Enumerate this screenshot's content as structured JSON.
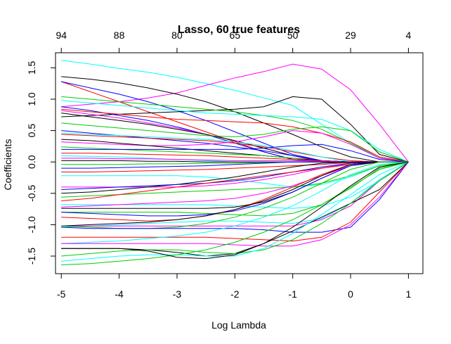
{
  "chart_data": {
    "type": "line",
    "title": "Lasso, 60 true features",
    "xlabel": "Log Lambda",
    "ylabel": "Coefficients",
    "xlim": [
      -5.1,
      1.25
    ],
    "ylim": [
      -1.78,
      1.74
    ],
    "x_ticks": [
      -5,
      -4,
      -3,
      -2,
      -1,
      0,
      1
    ],
    "y_ticks": [
      -1.5,
      -1.0,
      -0.5,
      0.0,
      0.5,
      1.0,
      1.5
    ],
    "y_tick_labels": [
      "-1.5",
      "-1.0",
      "-0.5",
      "0.0",
      "0.5",
      "1.0",
      "1.5"
    ],
    "top_axis": {
      "x": [
        -5,
        -4,
        -3,
        -2,
        -1,
        0,
        1
      ],
      "labels": [
        "94",
        "88",
        "80",
        "65",
        "50",
        "29",
        "4"
      ]
    },
    "grid": false,
    "legend": "none",
    "colors": [
      "#000000",
      "#ff0000",
      "#00cd00",
      "#0000ff",
      "#00ffff",
      "#ff00ff"
    ],
    "x": [
      -5,
      -4.5,
      -4,
      -3.5,
      -3,
      -2.5,
      -2,
      -1.5,
      -1,
      -0.5,
      0,
      0.5,
      1
    ],
    "series": [
      {
        "color": "#00ffff",
        "values": [
          1.62,
          1.56,
          1.49,
          1.43,
          1.35,
          1.25,
          1.14,
          1.02,
          0.9,
          0.6,
          0.3,
          0.08,
          0.0
        ]
      },
      {
        "color": "#ff00ff",
        "values": [
          0.88,
          0.92,
          0.96,
          1.02,
          1.1,
          1.22,
          1.34,
          1.44,
          1.56,
          1.48,
          1.15,
          0.6,
          0.0
        ]
      },
      {
        "color": "#000000",
        "values": [
          1.36,
          1.32,
          1.26,
          1.18,
          1.08,
          0.96,
          0.8,
          0.62,
          0.44,
          0.24,
          0.08,
          0.0,
          0.0
        ]
      },
      {
        "color": "#ff0000",
        "values": [
          1.28,
          1.12,
          0.96,
          0.8,
          0.64,
          0.48,
          0.32,
          0.16,
          0.04,
          0.0,
          0.0,
          0.0,
          0.0
        ]
      },
      {
        "color": "#0000ff",
        "values": [
          1.28,
          1.18,
          1.08,
          0.96,
          0.82,
          0.66,
          0.48,
          0.3,
          0.12,
          0.02,
          0.0,
          0.0,
          0.0
        ]
      },
      {
        "color": "#000000",
        "values": [
          0.72,
          0.74,
          0.76,
          0.78,
          0.8,
          0.82,
          0.84,
          0.88,
          1.04,
          1.0,
          0.6,
          0.12,
          0.0
        ]
      },
      {
        "color": "#00cd00",
        "values": [
          1.04,
          1.0,
          0.96,
          0.92,
          0.88,
          0.84,
          0.8,
          0.74,
          0.66,
          0.52,
          0.3,
          0.06,
          0.0
        ]
      },
      {
        "color": "#0000ff",
        "values": [
          0.88,
          0.82,
          0.74,
          0.66,
          0.56,
          0.44,
          0.3,
          0.16,
          0.04,
          0.0,
          0.0,
          0.0,
          0.0
        ]
      },
      {
        "color": "#00ffff",
        "values": [
          0.98,
          0.94,
          0.9,
          0.86,
          0.82,
          0.78,
          0.76,
          0.74,
          0.72,
          0.68,
          0.5,
          0.2,
          0.0
        ]
      },
      {
        "color": "#ff0000",
        "values": [
          0.84,
          0.8,
          0.76,
          0.72,
          0.68,
          0.66,
          0.64,
          0.62,
          0.56,
          0.46,
          0.32,
          0.08,
          0.0
        ]
      },
      {
        "color": "#ff00ff",
        "values": [
          0.82,
          0.76,
          0.7,
          0.62,
          0.54,
          0.44,
          0.34,
          0.22,
          0.1,
          0.0,
          0.0,
          0.0,
          0.0
        ]
      },
      {
        "color": "#000000",
        "values": [
          0.78,
          0.72,
          0.66,
          0.6,
          0.52,
          0.44,
          0.34,
          0.22,
          0.1,
          0.02,
          0.0,
          0.0,
          0.0
        ]
      },
      {
        "color": "#00cd00",
        "values": [
          0.62,
          0.58,
          0.54,
          0.5,
          0.46,
          0.42,
          0.4,
          0.44,
          0.52,
          0.56,
          0.5,
          0.16,
          0.0
        ]
      },
      {
        "color": "#0000ff",
        "values": [
          0.5,
          0.46,
          0.42,
          0.38,
          0.34,
          0.3,
          0.24,
          0.18,
          0.1,
          0.02,
          0.0,
          0.0,
          0.0
        ]
      },
      {
        "color": "#ff0000",
        "values": [
          0.44,
          0.42,
          0.4,
          0.38,
          0.36,
          0.34,
          0.3,
          0.24,
          0.16,
          0.08,
          0.02,
          0.0,
          0.0
        ]
      },
      {
        "color": "#00ffff",
        "values": [
          0.46,
          0.44,
          0.42,
          0.4,
          0.38,
          0.36,
          0.32,
          0.26,
          0.18,
          0.08,
          0.0,
          0.0,
          0.0
        ]
      },
      {
        "color": "#ff00ff",
        "values": [
          0.32,
          0.3,
          0.28,
          0.26,
          0.26,
          0.28,
          0.32,
          0.4,
          0.5,
          0.46,
          0.28,
          0.06,
          0.0
        ]
      },
      {
        "color": "#000000",
        "values": [
          0.36,
          0.34,
          0.3,
          0.26,
          0.22,
          0.18,
          0.14,
          0.1,
          0.06,
          0.02,
          0.0,
          0.0,
          0.0
        ]
      },
      {
        "color": "#00cd00",
        "values": [
          0.24,
          0.22,
          0.2,
          0.18,
          0.16,
          0.14,
          0.12,
          0.1,
          0.06,
          0.0,
          0.0,
          0.0,
          0.0
        ]
      },
      {
        "color": "#0000ff",
        "values": [
          0.2,
          0.2,
          0.2,
          0.2,
          0.2,
          0.2,
          0.2,
          0.22,
          0.26,
          0.28,
          0.18,
          0.04,
          0.0
        ]
      },
      {
        "color": "#ff0000",
        "values": [
          0.14,
          0.14,
          0.13,
          0.12,
          0.11,
          0.1,
          0.08,
          0.06,
          0.04,
          0.02,
          0.0,
          0.0,
          0.0
        ]
      },
      {
        "color": "#00ffff",
        "values": [
          0.1,
          0.09,
          0.08,
          0.06,
          0.04,
          0.02,
          0.0,
          0.0,
          0.0,
          0.0,
          0.0,
          0.0,
          0.0
        ]
      },
      {
        "color": "#ff00ff",
        "values": [
          0.06,
          0.06,
          0.05,
          0.05,
          0.04,
          0.03,
          0.02,
          0.02,
          0.02,
          0.01,
          0.0,
          0.0,
          0.0
        ]
      },
      {
        "color": "#000000",
        "values": [
          0.02,
          0.02,
          0.02,
          0.01,
          0.01,
          0.0,
          0.0,
          0.0,
          0.0,
          0.0,
          0.0,
          0.0,
          0.0
        ]
      },
      {
        "color": "#00cd00",
        "values": [
          -0.04,
          -0.04,
          -0.04,
          -0.03,
          -0.03,
          -0.02,
          -0.02,
          -0.01,
          0.0,
          0.0,
          0.0,
          0.0,
          0.0
        ]
      },
      {
        "color": "#0000ff",
        "values": [
          -0.1,
          -0.1,
          -0.09,
          -0.08,
          -0.07,
          -0.06,
          -0.04,
          -0.02,
          0.0,
          0.0,
          0.0,
          0.0,
          0.0
        ]
      },
      {
        "color": "#ff0000",
        "values": [
          -0.16,
          -0.16,
          -0.15,
          -0.14,
          -0.13,
          -0.12,
          -0.1,
          -0.08,
          -0.06,
          -0.04,
          -0.01,
          0.0,
          0.0
        ]
      },
      {
        "color": "#00ffff",
        "values": [
          -0.22,
          -0.22,
          -0.22,
          -0.22,
          -0.22,
          -0.24,
          -0.28,
          -0.34,
          -0.4,
          -0.36,
          -0.24,
          -0.06,
          0.0
        ]
      },
      {
        "color": "#ff00ff",
        "values": [
          -0.4,
          -0.4,
          -0.4,
          -0.4,
          -0.4,
          -0.38,
          -0.34,
          -0.28,
          -0.2,
          -0.1,
          -0.02,
          0.0,
          0.0
        ]
      },
      {
        "color": "#000000",
        "values": [
          -0.5,
          -0.48,
          -0.44,
          -0.4,
          -0.36,
          -0.3,
          -0.24,
          -0.16,
          -0.08,
          -0.02,
          0.0,
          0.0,
          0.0
        ]
      },
      {
        "color": "#00cd00",
        "values": [
          -0.56,
          -0.54,
          -0.52,
          -0.5,
          -0.48,
          -0.46,
          -0.44,
          -0.42,
          -0.4,
          -0.34,
          -0.22,
          -0.06,
          0.0
        ]
      },
      {
        "color": "#0000ff",
        "values": [
          -0.44,
          -0.42,
          -0.4,
          -0.38,
          -0.36,
          -0.34,
          -0.3,
          -0.24,
          -0.16,
          -0.08,
          -0.02,
          0.0,
          0.0
        ]
      },
      {
        "color": "#ff0000",
        "values": [
          -0.62,
          -0.58,
          -0.52,
          -0.46,
          -0.4,
          -0.34,
          -0.28,
          -0.22,
          -0.16,
          -0.1,
          -0.04,
          0.0,
          0.0
        ]
      },
      {
        "color": "#00ffff",
        "values": [
          -0.68,
          -0.68,
          -0.68,
          -0.68,
          -0.68,
          -0.68,
          -0.7,
          -0.72,
          -0.74,
          -0.7,
          -0.56,
          -0.3,
          0.0
        ]
      },
      {
        "color": "#ff00ff",
        "values": [
          -0.72,
          -0.7,
          -0.68,
          -0.66,
          -0.64,
          -0.62,
          -0.58,
          -0.5,
          -0.38,
          -0.22,
          -0.06,
          0.0,
          0.0
        ]
      },
      {
        "color": "#000000",
        "values": [
          -0.74,
          -0.74,
          -0.74,
          -0.74,
          -0.74,
          -0.74,
          -0.72,
          -0.64,
          -0.48,
          -0.26,
          -0.06,
          0.0,
          0.0
        ]
      },
      {
        "color": "#00cd00",
        "values": [
          -0.8,
          -0.8,
          -0.8,
          -0.8,
          -0.8,
          -0.82,
          -0.84,
          -0.86,
          -0.82,
          -0.68,
          -0.42,
          -0.1,
          0.0
        ]
      },
      {
        "color": "#0000ff",
        "values": [
          -0.8,
          -0.82,
          -0.84,
          -0.86,
          -0.86,
          -0.84,
          -0.78,
          -0.66,
          -0.48,
          -0.26,
          -0.06,
          0.0,
          0.0
        ]
      },
      {
        "color": "#ff0000",
        "values": [
          -0.88,
          -0.9,
          -0.92,
          -0.94,
          -0.92,
          -0.86,
          -0.76,
          -0.6,
          -0.4,
          -0.2,
          -0.04,
          0.0,
          0.0
        ]
      },
      {
        "color": "#00ffff",
        "values": [
          -1.04,
          -1.02,
          -1.0,
          -0.98,
          -0.96,
          -0.94,
          -0.94,
          -0.96,
          -0.98,
          -0.9,
          -0.66,
          -0.28,
          0.0
        ]
      },
      {
        "color": "#ff00ff",
        "values": [
          -1.02,
          -1.02,
          -1.02,
          -1.02,
          -1.02,
          -1.02,
          -1.02,
          -1.02,
          -1.02,
          -0.92,
          -0.7,
          -0.3,
          0.0
        ]
      },
      {
        "color": "#000000",
        "values": [
          -1.02,
          -1.0,
          -0.98,
          -0.96,
          -0.92,
          -0.86,
          -0.76,
          -0.62,
          -0.44,
          -0.22,
          -0.04,
          0.0,
          0.0
        ]
      },
      {
        "color": "#00cd00",
        "values": [
          -1.02,
          -1.04,
          -1.06,
          -1.06,
          -1.04,
          -0.98,
          -0.88,
          -0.74,
          -0.56,
          -0.34,
          -0.12,
          0.0,
          0.0
        ]
      },
      {
        "color": "#0000ff",
        "values": [
          -1.04,
          -1.06,
          -1.06,
          -1.06,
          -1.06,
          -1.06,
          -1.06,
          -1.08,
          -1.12,
          -1.12,
          -1.04,
          -0.6,
          0.0
        ]
      },
      {
        "color": "#ff0000",
        "values": [
          -1.2,
          -1.2,
          -1.2,
          -1.2,
          -1.2,
          -1.2,
          -1.22,
          -1.24,
          -1.26,
          -1.2,
          -0.96,
          -0.48,
          0.0
        ]
      },
      {
        "color": "#00ffff",
        "values": [
          -1.3,
          -1.28,
          -1.26,
          -1.22,
          -1.18,
          -1.12,
          -1.02,
          -0.88,
          -0.7,
          -0.46,
          -0.2,
          -0.04,
          0.0
        ]
      },
      {
        "color": "#ff00ff",
        "values": [
          -1.3,
          -1.3,
          -1.3,
          -1.3,
          -1.3,
          -1.3,
          -1.32,
          -1.34,
          -1.34,
          -1.24,
          -1.0,
          -0.56,
          0.0
        ]
      },
      {
        "color": "#000000",
        "values": [
          -1.38,
          -1.38,
          -1.38,
          -1.4,
          -1.44,
          -1.5,
          -1.46,
          -1.3,
          -1.1,
          -0.88,
          -0.66,
          -0.44,
          0.0
        ]
      },
      {
        "color": "#00cd00",
        "values": [
          -1.5,
          -1.46,
          -1.42,
          -1.4,
          -1.4,
          -1.44,
          -1.46,
          -1.4,
          -1.24,
          -0.98,
          -0.66,
          -0.3,
          0.0
        ]
      },
      {
        "color": "#00ffff",
        "values": [
          -1.58,
          -1.54,
          -1.5,
          -1.48,
          -1.48,
          -1.5,
          -1.5,
          -1.38,
          -1.14,
          -0.84,
          -0.52,
          -0.2,
          0.0
        ]
      },
      {
        "color": "#00cd00",
        "values": [
          -1.64,
          -1.62,
          -1.58,
          -1.54,
          -1.48,
          -1.4,
          -1.28,
          -1.12,
          -0.92,
          -0.68,
          -0.4,
          -0.12,
          0.0
        ]
      },
      {
        "color": "#000000",
        "values": [
          -1.38,
          -1.38,
          -1.38,
          -1.42,
          -1.52,
          -1.54,
          -1.48,
          -1.3,
          -1.04,
          -0.72,
          -0.38,
          -0.08,
          0.0
        ]
      }
    ]
  }
}
